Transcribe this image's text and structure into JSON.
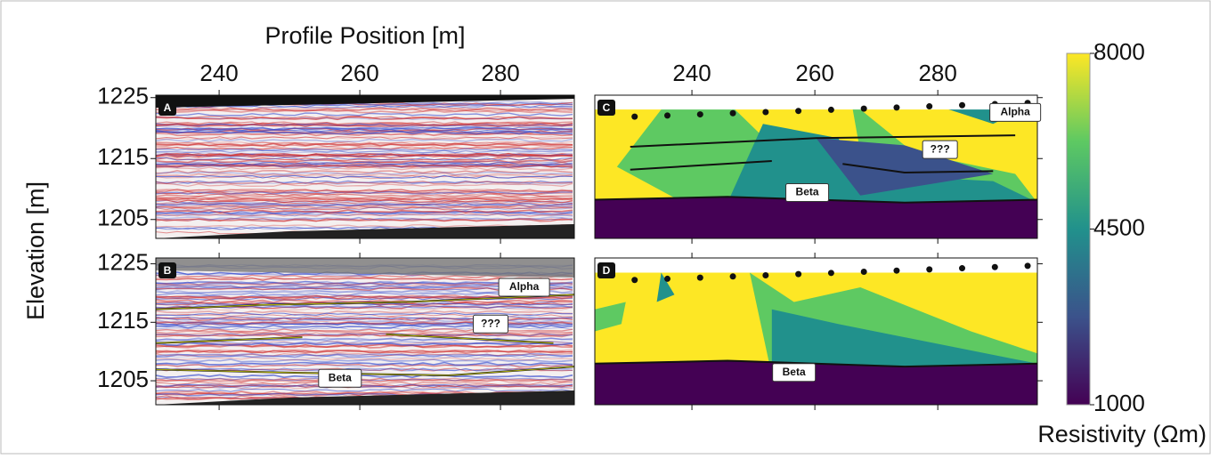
{
  "chart_data": {
    "type": "heatmap",
    "x_label": "Profile Position [m]",
    "y_label": "Elevation [m]",
    "xticks": [
      240,
      260,
      280
    ],
    "yticks": [
      1205,
      1215,
      1225
    ],
    "panels": [
      {
        "label": "A",
        "kind": "seismic",
        "xlim": [
          231,
          290.5
        ],
        "ylim": [
          1201.9,
          1225.4
        ],
        "annotations": []
      },
      {
        "label": "B",
        "kind": "seismic",
        "xlim": [
          231,
          290.5
        ],
        "ylim": [
          1200.9,
          1226
        ],
        "annotations": [
          "Alpha",
          "???",
          "Beta"
        ]
      },
      {
        "label": "C",
        "kind": "resistivity",
        "xlim": [
          224.2,
          296.2
        ],
        "ylim": [
          1201.9,
          1225.4
        ],
        "annotations": [
          "Alpha",
          "???",
          "Beta"
        ]
      },
      {
        "label": "D",
        "kind": "resistivity",
        "xlim": [
          224.2,
          296.2
        ],
        "ylim": [
          1200.9,
          1226
        ],
        "annotations": [
          "Beta"
        ]
      }
    ],
    "colorbar": {
      "label": "Resistivity (Ωm)",
      "lim": [
        1000,
        8000
      ],
      "ticks": [
        1000,
        4500,
        8000
      ],
      "colors": [
        "#440154",
        "#3b528b",
        "#21918c",
        "#5ec962",
        "#fde725"
      ]
    }
  }
}
